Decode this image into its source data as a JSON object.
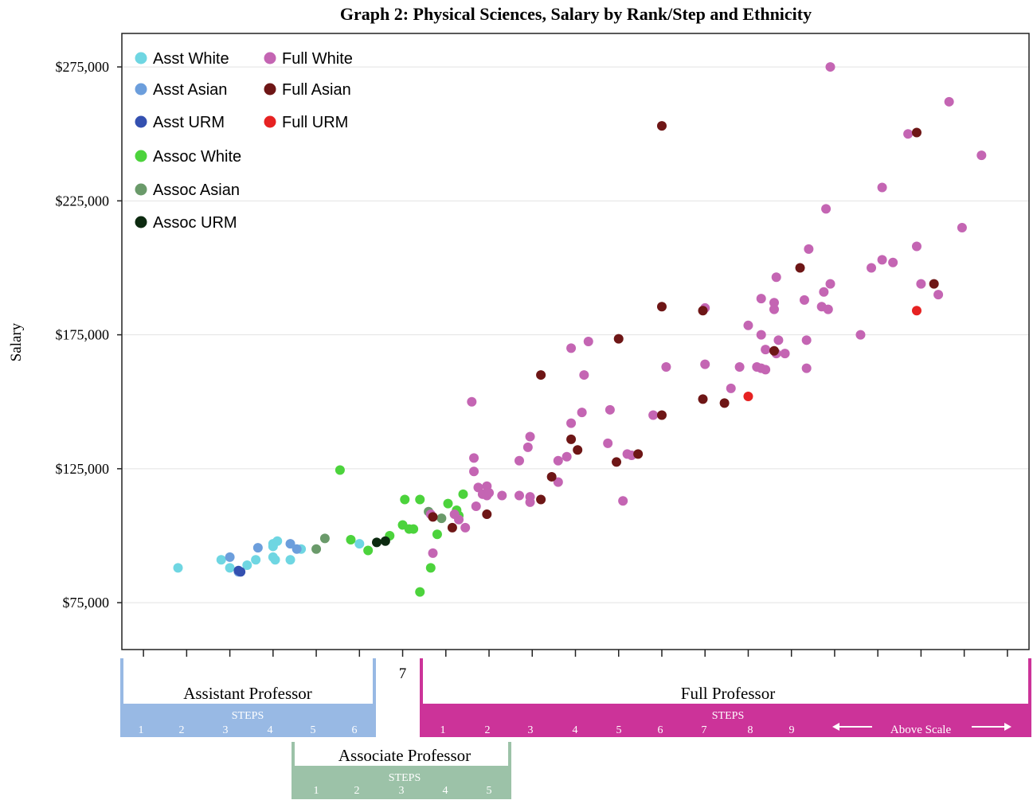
{
  "chart_data": {
    "type": "scatter",
    "title": "Graph 2: Physical Sciences, Salary by Rank/Step and Ethnicity",
    "ylabel": "Salary",
    "xlabel": "",
    "xlim": [
      0.5,
      21.5
    ],
    "ylim": [
      57500,
      287500
    ],
    "x_ticks": [
      "1",
      "2",
      "3",
      "4",
      "5",
      "6",
      "7",
      "8",
      "9",
      "10",
      "11",
      "12",
      "13",
      "14",
      "15",
      "16",
      "17",
      "18",
      "19",
      "20",
      "21"
    ],
    "y_ticks": [
      {
        "value": 75000,
        "label": "$75,000"
      },
      {
        "value": 125000,
        "label": "$125,000"
      },
      {
        "value": 175000,
        "label": "$175,000"
      },
      {
        "value": 225000,
        "label": "$225,000"
      },
      {
        "value": 275000,
        "label": "$275,000"
      }
    ],
    "grid": "horizontal",
    "legend": "top-left",
    "series": [
      {
        "name": "Asst White",
        "color": "#6fd6e2",
        "points": [
          [
            1.8,
            88000
          ],
          [
            2.8,
            91000
          ],
          [
            3.0,
            88000
          ],
          [
            3.4,
            89000
          ],
          [
            3.6,
            91000
          ],
          [
            4.0,
            92000
          ],
          [
            4.0,
            96000
          ],
          [
            4.05,
            91000
          ],
          [
            4.0,
            97000
          ],
          [
            4.1,
            98000
          ],
          [
            4.4,
            91000
          ],
          [
            4.65,
            95000
          ],
          [
            6.0,
            97000
          ]
        ]
      },
      {
        "name": "Asst Asian",
        "color": "#6c9edc",
        "points": [
          [
            3.0,
            92000
          ],
          [
            3.2,
            86500
          ],
          [
            3.65,
            95500
          ],
          [
            4.4,
            97000
          ],
          [
            4.55,
            95000
          ]
        ]
      },
      {
        "name": "Asst URM",
        "color": "#3450b0",
        "points": [
          [
            3.2,
            87000
          ],
          [
            3.25,
            86500
          ]
        ]
      },
      {
        "name": "Assoc White",
        "color": "#4cd33c",
        "points": [
          [
            5.55,
            124500
          ],
          [
            5.8,
            98500
          ],
          [
            6.2,
            94500
          ],
          [
            6.7,
            100000
          ],
          [
            7.0,
            104000
          ],
          [
            7.05,
            113500
          ],
          [
            7.15,
            102500
          ],
          [
            7.25,
            102500
          ],
          [
            7.4,
            113500
          ],
          [
            7.4,
            79000
          ],
          [
            7.65,
            88000
          ],
          [
            7.8,
            100500
          ],
          [
            8.05,
            112000
          ],
          [
            8.25,
            109500
          ],
          [
            8.3,
            107500
          ],
          [
            8.4,
            115500
          ]
        ]
      },
      {
        "name": "Assoc Asian",
        "color": "#6a9a6a",
        "points": [
          [
            5.0,
            95000
          ],
          [
            5.2,
            99000
          ],
          [
            7.6,
            109000
          ],
          [
            7.9,
            106500
          ]
        ]
      },
      {
        "name": "Assoc URM",
        "color": "#0c2a10",
        "points": [
          [
            6.4,
            97500
          ],
          [
            6.6,
            98000
          ]
        ]
      },
      {
        "name": "Full White",
        "color": "#c465b3",
        "points": [
          [
            16.9,
            275000
          ],
          [
            19.65,
            262000
          ],
          [
            18.7,
            250000
          ],
          [
            20.4,
            242000
          ],
          [
            18.1,
            230000
          ],
          [
            16.8,
            222000
          ],
          [
            19.95,
            215000
          ],
          [
            18.9,
            208000
          ],
          [
            16.4,
            207000
          ],
          [
            18.1,
            203000
          ],
          [
            18.35,
            202000
          ],
          [
            17.85,
            200000
          ],
          [
            15.65,
            196500
          ],
          [
            16.9,
            194000
          ],
          [
            19.0,
            194000
          ],
          [
            16.75,
            191000
          ],
          [
            19.4,
            190000
          ],
          [
            15.3,
            188500
          ],
          [
            15.6,
            187000
          ],
          [
            15.6,
            184500
          ],
          [
            16.3,
            188000
          ],
          [
            16.7,
            185500
          ],
          [
            16.85,
            184500
          ],
          [
            14.0,
            185000
          ],
          [
            17.6,
            175000
          ],
          [
            15.0,
            178500
          ],
          [
            15.3,
            175000
          ],
          [
            15.7,
            173000
          ],
          [
            16.35,
            173000
          ],
          [
            11.3,
            172500
          ],
          [
            10.9,
            170000
          ],
          [
            15.4,
            169500
          ],
          [
            15.65,
            168000
          ],
          [
            15.85,
            168000
          ],
          [
            14.0,
            164000
          ],
          [
            13.1,
            163000
          ],
          [
            14.8,
            163000
          ],
          [
            15.2,
            163000
          ],
          [
            15.3,
            162500
          ],
          [
            15.4,
            162000
          ],
          [
            16.35,
            162500
          ],
          [
            11.2,
            160000
          ],
          [
            14.6,
            155000
          ],
          [
            8.6,
            150000
          ],
          [
            11.15,
            146000
          ],
          [
            11.8,
            147000
          ],
          [
            12.8,
            145000
          ],
          [
            9.95,
            137000
          ],
          [
            10.9,
            142000
          ],
          [
            9.9,
            133000
          ],
          [
            11.75,
            134500
          ],
          [
            12.2,
            130500
          ],
          [
            12.3,
            130000
          ],
          [
            9.7,
            128000
          ],
          [
            10.6,
            128000
          ],
          [
            10.8,
            129500
          ],
          [
            8.65,
            129000
          ],
          [
            8.65,
            124000
          ],
          [
            10.6,
            120000
          ],
          [
            8.75,
            118000
          ],
          [
            8.95,
            118500
          ],
          [
            8.85,
            115500
          ],
          [
            8.95,
            115000
          ],
          [
            9.0,
            116000
          ],
          [
            9.3,
            115000
          ],
          [
            9.7,
            115000
          ],
          [
            9.95,
            114500
          ],
          [
            9.95,
            112500
          ],
          [
            8.7,
            111000
          ],
          [
            12.1,
            113000
          ],
          [
            7.65,
            108000
          ],
          [
            8.2,
            108000
          ],
          [
            8.3,
            106000
          ],
          [
            8.45,
            103000
          ],
          [
            7.7,
            93500
          ]
        ]
      },
      {
        "name": "Full Asian",
        "color": "#6e1616",
        "points": [
          [
            13.0,
            253000
          ],
          [
            18.9,
            250500
          ],
          [
            16.2,
            200000
          ],
          [
            19.3,
            194000
          ],
          [
            13.0,
            185500
          ],
          [
            13.95,
            184000
          ],
          [
            12.0,
            173500
          ],
          [
            15.6,
            169000
          ],
          [
            10.2,
            160000
          ],
          [
            13.0,
            145000
          ],
          [
            13.95,
            151000
          ],
          [
            14.45,
            149500
          ],
          [
            10.9,
            136000
          ],
          [
            11.05,
            132000
          ],
          [
            12.45,
            130500
          ],
          [
            11.95,
            127500
          ],
          [
            10.45,
            122000
          ],
          [
            10.2,
            113500
          ],
          [
            8.95,
            108000
          ],
          [
            7.7,
            107000
          ],
          [
            8.15,
            103000
          ]
        ]
      },
      {
        "name": "Full URM",
        "color": "#e62222",
        "points": [
          [
            18.9,
            184000
          ],
          [
            15.0,
            152000
          ]
        ]
      }
    ],
    "rank_bands": [
      {
        "label": "Assistant Professor",
        "steps_label": "STEPS",
        "steps": [
          "1",
          "2",
          "3",
          "4",
          "5",
          "6"
        ],
        "color": "#98b9e4"
      },
      {
        "label": "Associate Professor",
        "steps_label": "STEPS",
        "steps": [
          "1",
          "2",
          "3",
          "4",
          "5"
        ],
        "color": "#9cc2a8"
      },
      {
        "label": "Full Professor",
        "steps_label": "STEPS",
        "steps": [
          "1",
          "2",
          "3",
          "4",
          "5",
          "6",
          "7",
          "8",
          "9"
        ],
        "above_scale": "Above Scale",
        "color": "#cc3399"
      }
    ]
  }
}
